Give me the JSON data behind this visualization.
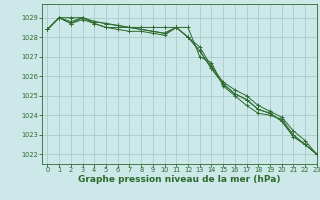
{
  "background_color": "#cce8e8",
  "grid_color": "#aacccc",
  "line_color": "#2d6a2d",
  "xlabel": "Graphe pression niveau de la mer (hPa)",
  "xlabel_fontsize": 6.5,
  "ylim": [
    1021.5,
    1029.7
  ],
  "xlim": [
    -0.5,
    23
  ],
  "yticks": [
    1022,
    1023,
    1024,
    1025,
    1026,
    1027,
    1028,
    1029
  ],
  "xticks": [
    0,
    1,
    2,
    3,
    4,
    5,
    6,
    7,
    8,
    9,
    10,
    11,
    12,
    13,
    14,
    15,
    16,
    17,
    18,
    19,
    20,
    21,
    22,
    23
  ],
  "series": [
    [
      1028.4,
      1029.0,
      1028.8,
      1029.0,
      1028.8,
      1028.7,
      1028.6,
      1028.5,
      1028.4,
      1028.3,
      1028.2,
      1028.5,
      1028.0,
      1027.5,
      1026.5,
      1025.7,
      1025.3,
      1025.0,
      1024.5,
      1024.2,
      1023.9,
      1023.2,
      1022.7,
      1022.0
    ],
    [
      1028.4,
      1029.0,
      1028.7,
      1028.9,
      1028.7,
      1028.5,
      1028.4,
      1028.3,
      1028.3,
      1028.2,
      1028.1,
      1028.5,
      1028.0,
      1027.3,
      1026.4,
      1025.6,
      1025.1,
      1024.8,
      1024.3,
      1024.1,
      1023.7,
      1022.9,
      1022.5,
      1022.0
    ],
    [
      1028.4,
      1029.0,
      1028.7,
      1029.0,
      1028.8,
      1028.7,
      1028.6,
      1028.5,
      1028.4,
      1028.3,
      1028.2,
      1028.5,
      1028.0,
      1027.3,
      1026.4,
      1025.6,
      1025.1,
      1024.8,
      1024.3,
      1024.1,
      1023.7,
      1022.9,
      1022.5,
      1022.0
    ],
    [
      1028.4,
      1029.0,
      1029.0,
      1029.0,
      1028.7,
      1028.5,
      1028.5,
      1028.5,
      1028.5,
      1028.5,
      1028.5,
      1028.5,
      1028.5,
      1027.0,
      1026.7,
      1025.5,
      1025.0,
      1024.5,
      1024.1,
      1024.0,
      1023.8,
      1023.0,
      1022.5,
      1022.0
    ]
  ]
}
